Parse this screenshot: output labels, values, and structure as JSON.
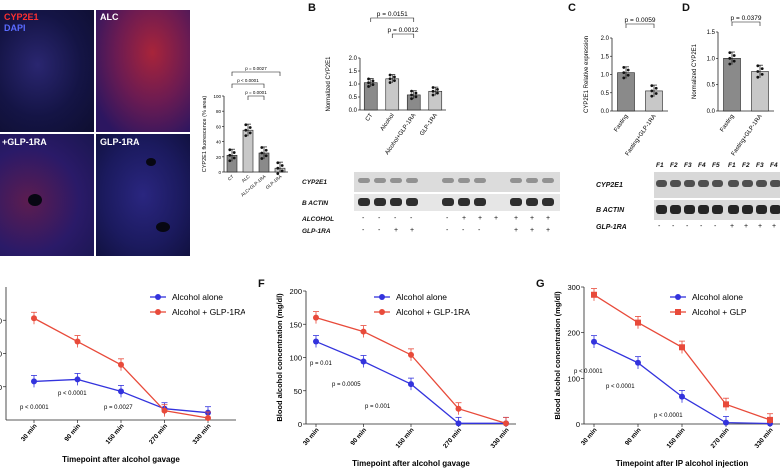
{
  "panel_letters": {
    "B": "B",
    "C": "C",
    "D": "D",
    "F": "F",
    "G": "G"
  },
  "micro": {
    "legend_cyp": "CYP2E1",
    "legend_dapi": "DAPI",
    "tr": "ALC",
    "bl": "+GLP-1RA",
    "br": "GLP-1RA"
  },
  "panel_a_chart": {
    "type": "bar",
    "ylabel": "CYP2E1 fluorescence (% area)",
    "categories": [
      "CT",
      "ALC",
      "ALC+GLP-1RA",
      "GLP-1RA"
    ],
    "values": [
      22,
      55,
      25,
      5
    ],
    "ylim": [
      0,
      100
    ],
    "yticks": [
      "0",
      "20",
      "40",
      "60",
      "80",
      "100"
    ],
    "pvalues": [
      "p = 0.0027",
      "p < 0.0001",
      "p = 0.0001"
    ]
  },
  "panel_b_chart": {
    "type": "bar",
    "ylabel": "Normalized CYP2E1",
    "categories": [
      "CT",
      "Alcohol",
      "Alcohol+GLP-1RA",
      "GLP-1RA"
    ],
    "values": [
      1.05,
      1.2,
      0.58,
      0.72
    ],
    "ylim": [
      0,
      2.0
    ],
    "yticks": [
      "0.0",
      "0.5",
      "1.0",
      "1.5",
      "2.0"
    ],
    "pvalues": [
      "p = 0.0151",
      "p = 0.0012"
    ]
  },
  "panel_c_chart": {
    "type": "bar",
    "ylabel": "CYP2E1 Relative expression",
    "categories": [
      "Fasting",
      "Fasting+GLP-1RA"
    ],
    "values": [
      1.05,
      0.55
    ],
    "ylim": [
      0,
      2.0
    ],
    "yticks": [
      "0.0",
      "0.5",
      "1.0",
      "1.5",
      "2.0"
    ],
    "pvalues": [
      "p = 0.0059"
    ]
  },
  "panel_d_chart": {
    "type": "bar",
    "ylabel": "Normalized CYP2E1",
    "categories": [
      "Fasting",
      "Fasting+GLP-1RA"
    ],
    "values": [
      1.0,
      0.75
    ],
    "ylim": [
      0,
      1.5
    ],
    "yticks": [
      "0.0",
      "0.5",
      "1.0",
      "1.5"
    ],
    "pvalues": [
      "p = 0.0379"
    ]
  },
  "blot_b": {
    "rows": [
      "CYP2E1",
      "B ACTIN",
      "ALCOHOL",
      "GLP-1RA"
    ],
    "alcohol": [
      "-",
      "-",
      "-",
      "-",
      "-",
      "+",
      "+",
      "+",
      "+",
      "+",
      "+"
    ],
    "glp": [
      "-",
      "-",
      "+",
      "+",
      "-",
      "-",
      "-",
      "+",
      "+",
      "+"
    ]
  },
  "blot_d": {
    "lanes": [
      "F1",
      "F2",
      "F3",
      "F4",
      "F5",
      "F1",
      "F2",
      "F3",
      "F4"
    ],
    "rows": [
      "CYP2E1",
      "B ACTIN",
      "GLP-1RA"
    ],
    "glp": [
      "-",
      "-",
      "-",
      "-",
      "-",
      "+",
      "+",
      "+",
      "+"
    ]
  },
  "panel_e_chart": {
    "type": "line",
    "xlabel": "Timepoint after alcohol gavage",
    "categories": [
      "30 min",
      "90 min",
      "150 min",
      "270 min",
      "330 min"
    ],
    "series": [
      {
        "name": "Alcohol alone",
        "values": [
          58,
          61,
          43,
          17,
          11
        ],
        "color": "#3333dd"
      },
      {
        "name": "Alcohol + GLP-1RA",
        "values": [
          153,
          118,
          83,
          14,
          3
        ],
        "color": "#e84a3a"
      }
    ],
    "ylim": [
      0,
      200
    ],
    "yticks": [
      "50",
      "00",
      "50"
    ],
    "pvalues": [
      "p < 0.0001",
      "p < 0.0001",
      "p = 0.0027"
    ]
  },
  "panel_f_chart": {
    "type": "line",
    "ylabel": "Blood alcohol concentration (mg/dl)",
    "xlabel": "Timepoint after alcohol gavage",
    "categories": [
      "30 min",
      "90 min",
      "150 min",
      "270 min",
      "330 min"
    ],
    "series": [
      {
        "name": "Alcohol alone",
        "values": [
          124,
          94,
          60,
          1,
          1
        ],
        "color": "#3333dd"
      },
      {
        "name": "Alcohol + GLP-1RA",
        "values": [
          160,
          139,
          104,
          23,
          1
        ],
        "color": "#e84a3a"
      }
    ],
    "ylim": [
      0,
      200
    ],
    "yticks": [
      "0",
      "50",
      "100",
      "150",
      "200"
    ],
    "pvalues": [
      "p = 0.01",
      "p = 0.0005",
      "p = 0.001"
    ]
  },
  "panel_g_chart": {
    "type": "line",
    "ylabel": "Blood alcohol concentration (mg/dl)",
    "xlabel": "Timepoint after IP alcohol injection",
    "categories": [
      "30 min",
      "90 min",
      "150 min",
      "270 min",
      "330 min"
    ],
    "series": [
      {
        "name": "Alcohol alone",
        "values": [
          180,
          134,
          60,
          3,
          1
        ],
        "color": "#3333dd"
      },
      {
        "name": "Alcohol + GLP",
        "values": [
          283,
          222,
          168,
          43,
          9
        ],
        "color": "#e84a3a"
      }
    ],
    "ylim": [
      0,
      300
    ],
    "yticks": [
      "0",
      "100",
      "200",
      "300"
    ],
    "pvalues": [
      "p < 0.0001",
      "p < 0.0001",
      "p < 0.0001"
    ]
  }
}
